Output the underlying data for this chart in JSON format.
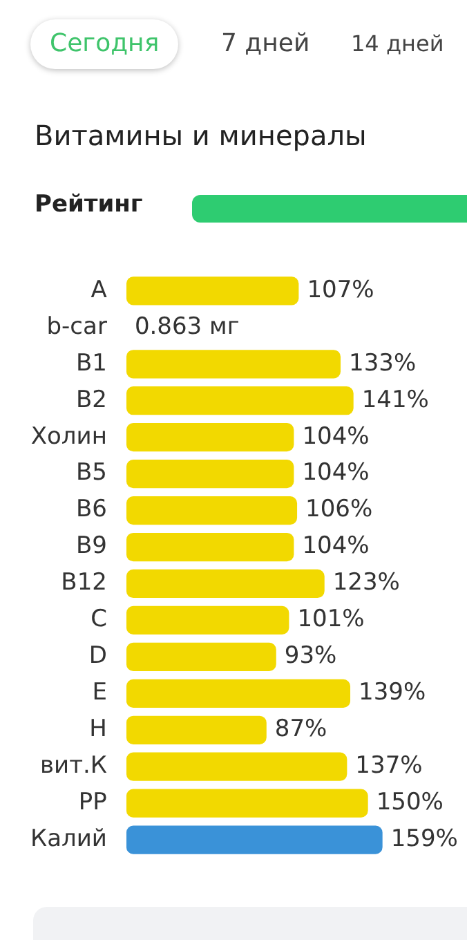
{
  "chart_data": {
    "type": "bar",
    "orientation": "horizontal",
    "title": "Витамины и минералы",
    "annotations": [
      "Сегодня",
      "7 дней",
      "14 дней",
      "Рейтинг"
    ],
    "categories": [
      "A",
      "b-car",
      "B1",
      "B2",
      "Холин",
      "B5",
      "B6",
      "B9",
      "B12",
      "C",
      "D",
      "E",
      "H",
      "вит.К",
      "PP",
      "Калий"
    ],
    "values": [
      107,
      null,
      133,
      141,
      104,
      104,
      106,
      104,
      123,
      101,
      93,
      139,
      87,
      137,
      150,
      159
    ],
    "value_labels": [
      "107%",
      "0.863 мг",
      "133%",
      "141%",
      "104%",
      "104%",
      "106%",
      "104%",
      "123%",
      "101%",
      "93%",
      "139%",
      "87%",
      "137%",
      "150%",
      "159%"
    ],
    "colors": [
      "#f2d900",
      "#f2d900",
      "#f2d900",
      "#f2d900",
      "#f2d900",
      "#f2d900",
      "#f2d900",
      "#f2d900",
      "#f2d900",
      "#f2d900",
      "#f2d900",
      "#f2d900",
      "#f2d900",
      "#f2d900",
      "#f2d900",
      "#3a92d8"
    ],
    "xlim": [
      0,
      160
    ],
    "tick_labels": "y",
    "legend": false
  }
}
